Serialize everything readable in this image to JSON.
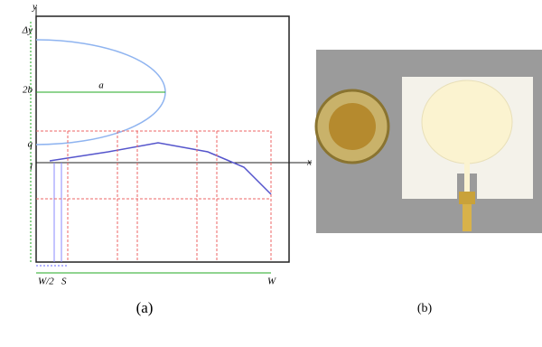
{
  "figure": {
    "panel_a": {
      "caption": "(a)",
      "labels": {
        "y_axis": "y",
        "x_axis": "x",
        "delta_y": "Δy",
        "two_b": "2b",
        "q": "q",
        "l": "l",
        "a": "a",
        "w": "W",
        "w_half": "W/2",
        "s": "S"
      }
    },
    "panel_b": {
      "caption": "(b)"
    }
  }
}
